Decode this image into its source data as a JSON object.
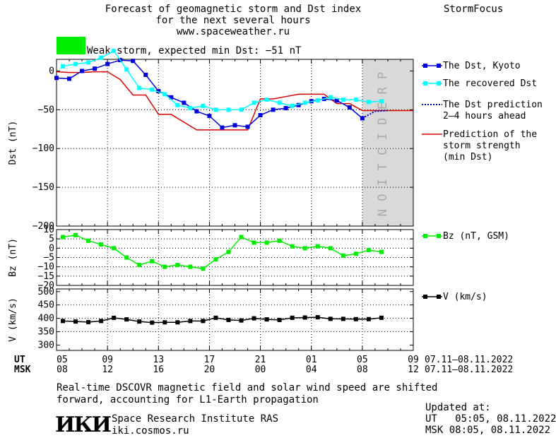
{
  "header": {
    "title_lines": [
      "Forecast of geomagnetic storm and Dst index",
      "for the next several hours",
      "www.spaceweather.ru"
    ],
    "brand": "StormFocus",
    "status_text": "Weak storm, expected min Dst: −51 nT",
    "status_color": "#00ee00"
  },
  "legend": {
    "dst_kyoto": "The Dst, Kyoto",
    "dst_recovered": "The recovered Dst",
    "dst_prediction_1": "The Dst prediction",
    "dst_prediction_2": "2–4 hours ahead",
    "storm_1": "Prediction of the",
    "storm_2": "storm strength",
    "storm_3": "(min Dst)",
    "bz": "Bz (nT, GSM)",
    "v": "V (km/s)"
  },
  "prediction_label": "PREDICTION",
  "axes": {
    "dst_ylabel": "Dst (nT)",
    "bz_ylabel": "Bz (nT)",
    "v_ylabel": "V (km/s)",
    "ut_label": "UT",
    "msk_label": "MSK",
    "ut_ticks": [
      "05",
      "09",
      "13",
      "17",
      "21",
      "01",
      "05",
      "09"
    ],
    "msk_ticks": [
      "08",
      "12",
      "16",
      "20",
      "00",
      "04",
      "08",
      "12"
    ],
    "ut_range": "07.11–08.11.2022",
    "msk_range": "07.11–08.11.2022"
  },
  "footer": {
    "note_line1": "Real-time DSCOVR magnetic field and solar wind speed are shifted",
    "note_line2": "forward, accounting for L1-Earth propagation",
    "logo": "ИКИ",
    "institute": "Space Research Institute RAS",
    "url": "iki.cosmos.ru",
    "updated_label": "Updated at:",
    "updated_ut": "UT   05:05, 08.11.2022",
    "updated_msk": "MSK 08:05, 08.11.2022"
  },
  "colors": {
    "dst_kyoto": "#0000dd",
    "dst_recovered": "#00ffff",
    "dst_prediction": "#0000dd",
    "storm": "#dd0000",
    "bz": "#00ee00",
    "v": "#000000",
    "prediction_band": "#d9d9d9"
  },
  "chart_data": [
    {
      "type": "line",
      "xlabel": "",
      "ylabel": "Dst (nT)",
      "x_unit": "hours from 05 UT 07.11.2022",
      "xlim": [
        0,
        28
      ],
      "ylim": [
        -200,
        15
      ],
      "yticks": [
        0,
        -50,
        -100,
        -150,
        -200
      ],
      "prediction_start": 24,
      "series": [
        {
          "name": "The Dst, Kyoto",
          "x": [
            0,
            1,
            2,
            3,
            4,
            5,
            6,
            7,
            8,
            9,
            10,
            11,
            12,
            13,
            14,
            15,
            16,
            17,
            18,
            19,
            20,
            21,
            22,
            23,
            24
          ],
          "y": [
            -9,
            -10,
            0,
            3,
            9,
            14,
            13,
            -5,
            -26,
            -34,
            -41,
            -52,
            -58,
            -73,
            -70,
            -72,
            -57,
            -50,
            -48,
            -44,
            -39,
            -36,
            -38,
            -47,
            -61
          ]
        },
        {
          "name": "The recovered Dst",
          "x": [
            0.5,
            1.5,
            2.5,
            3.5,
            4.5,
            5.5,
            6.5,
            7.5,
            8.5,
            9.5,
            10.5,
            11.5,
            12.5,
            13.5,
            14.5,
            15.5,
            16.5,
            17.5,
            18.5,
            19.5,
            20.5,
            21.5,
            22.5,
            23.5,
            24.5,
            25.5
          ],
          "y": [
            6,
            9,
            11,
            17,
            26,
            2,
            -22,
            -24,
            -30,
            -44,
            -48,
            -45,
            -50,
            -50,
            -50,
            -41,
            -37,
            -41,
            -45,
            -41,
            -38,
            -34,
            -37,
            -37,
            -40,
            -39
          ]
        },
        {
          "name": "The Dst prediction 2–4 hours ahead",
          "x": [
            24,
            25,
            26
          ],
          "y": [
            -61,
            -52,
            -51
          ]
        },
        {
          "name": "Prediction of the storm strength (min Dst)",
          "x": [
            0,
            1,
            2,
            3,
            4,
            5,
            6,
            7,
            8,
            9,
            10,
            11,
            12,
            13,
            14,
            15,
            16,
            17,
            18,
            19,
            20,
            21,
            22,
            23,
            24,
            25,
            26,
            27,
            28
          ],
          "y": [
            -1,
            -2,
            -2,
            -1,
            -1,
            -11,
            -31,
            -31,
            -56,
            -56,
            -66,
            -76,
            -76,
            -76,
            -76,
            -76,
            -36,
            -36,
            -33,
            -30,
            -30,
            -30,
            -42,
            -42,
            -51,
            -51,
            -51,
            -51,
            -51
          ]
        }
      ]
    },
    {
      "type": "line",
      "xlabel": "",
      "ylabel": "Bz (nT)",
      "x_unit": "hours from 05 UT 07.11.2022",
      "xlim": [
        0,
        28
      ],
      "ylim": [
        -20,
        10
      ],
      "yticks": [
        10,
        5,
        0,
        -5,
        -10,
        -15,
        -20
      ],
      "series": [
        {
          "name": "Bz (nT, GSM)",
          "x": [
            0.5,
            1.5,
            2.5,
            3.5,
            4.5,
            5.5,
            6.5,
            7.5,
            8.5,
            9.5,
            10.5,
            11.5,
            12.5,
            13.5,
            14.5,
            15.5,
            16.5,
            17.5,
            18.5,
            19.5,
            20.5,
            21.5,
            22.5,
            23.5,
            24.5,
            25.5
          ],
          "y": [
            6,
            7,
            4,
            2,
            0,
            -5,
            -9,
            -7,
            -10,
            -9,
            -10,
            -11,
            -6,
            -2,
            6,
            3,
            3,
            4,
            1,
            0,
            1,
            0,
            -4,
            -3,
            -1,
            -2
          ]
        }
      ]
    },
    {
      "type": "line",
      "xlabel": "",
      "ylabel": "V (km/s)",
      "x_unit": "hours from 05 UT 07.11.2022",
      "xlim": [
        0,
        28
      ],
      "ylim": [
        280,
        510
      ],
      "yticks": [
        500,
        450,
        400,
        350,
        300
      ],
      "series": [
        {
          "name": "V (km/s)",
          "x": [
            0.5,
            1.5,
            2.5,
            3.5,
            4.5,
            5.5,
            6.5,
            7.5,
            8.5,
            9.5,
            10.5,
            11.5,
            12.5,
            13.5,
            14.5,
            15.5,
            16.5,
            17.5,
            18.5,
            19.5,
            20.5,
            21.5,
            22.5,
            23.5,
            24.5,
            25.5
          ],
          "y": [
            390,
            388,
            386,
            390,
            402,
            396,
            388,
            384,
            385,
            385,
            390,
            390,
            402,
            394,
            392,
            400,
            396,
            394,
            402,
            403,
            404,
            398,
            398,
            397,
            397,
            402
          ]
        }
      ]
    }
  ]
}
